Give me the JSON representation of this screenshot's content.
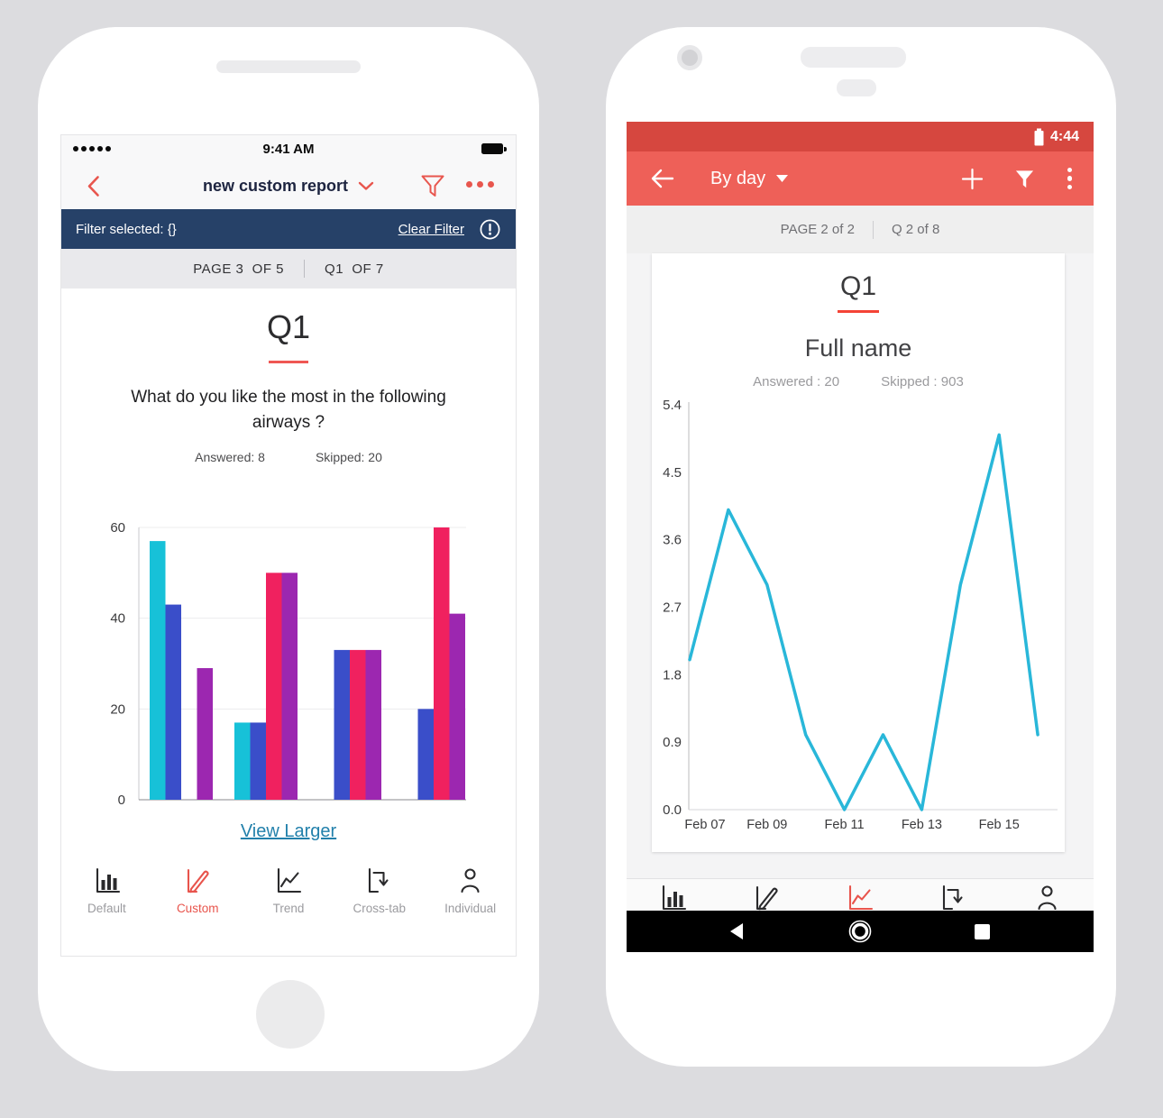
{
  "colors": {
    "left_accent_red": "#e8564e",
    "left_filter_navy": "#264168",
    "left_link_blue": "#2280ab",
    "right_statusbar_red": "#d6473f",
    "right_appbar_red": "#ee6058",
    "active_tab_red": "#e8544c",
    "bar_cyan": "#17c1d8",
    "bar_blue": "#3a4ec9",
    "bar_pink": "#f0215f",
    "bar_purple": "#9c27b0",
    "line_cyan": "#29b7d9"
  },
  "left_phone": {
    "status_bar": {
      "time": "9:41 AM"
    },
    "nav_bar": {
      "title": "new custom report"
    },
    "filter_bar": {
      "label": "Filter selected: {}",
      "clear_filter": "Clear Filter"
    },
    "page_bar": {
      "page": "PAGE 3  OF 5",
      "question": "Q1  OF 7"
    },
    "report": {
      "question_id": "Q1",
      "question_text": "What do you like the most in the following airways ?",
      "answered": "Answered: 8",
      "skipped": "Skipped: 20",
      "view_larger": "View Larger"
    },
    "tabs": [
      {
        "label": "Default",
        "active": false
      },
      {
        "label": "Custom",
        "active": true
      },
      {
        "label": "Trend",
        "active": false
      },
      {
        "label": "Cross-tab",
        "active": false
      },
      {
        "label": "Individual",
        "active": false
      }
    ]
  },
  "right_phone": {
    "status_bar": {
      "time": "4:44"
    },
    "nav_bar": {
      "title": "By day"
    },
    "page_bar": {
      "page": "PAGE 2 of 2",
      "question": "Q 2 of 8"
    },
    "report": {
      "question_id": "Q1",
      "question_text": "Full name",
      "answered": "Answered : 20",
      "skipped": "Skipped : 903"
    },
    "tabs": [
      {
        "label": "Default",
        "active": false
      },
      {
        "label": "Custom",
        "active": false
      },
      {
        "label": "Trend",
        "active": true
      },
      {
        "label": "crossTab",
        "active": false
      },
      {
        "label": "Individual",
        "active": false
      }
    ]
  },
  "chart_data": [
    {
      "type": "bar",
      "phone": "left",
      "title": "Q1 — What do you like the most in the following airways ?",
      "categories": [
        "",
        "",
        "",
        ""
      ],
      "series": [
        {
          "name": "cyan",
          "color": "#17c1d8",
          "values": [
            57,
            17,
            0,
            0
          ]
        },
        {
          "name": "blue",
          "color": "#3a4ec9",
          "values": [
            43,
            17,
            33,
            20
          ]
        },
        {
          "name": "pink",
          "color": "#f0215f",
          "values": [
            0,
            50,
            33,
            60
          ]
        },
        {
          "name": "purple",
          "color": "#9c27b0",
          "values": [
            29,
            50,
            33,
            41
          ]
        }
      ],
      "ylim": [
        0,
        60
      ],
      "yticks": [
        0,
        20,
        40,
        60
      ],
      "grid": true,
      "legend": "none",
      "xlabel": "",
      "ylabel": ""
    },
    {
      "type": "line",
      "phone": "right",
      "title": "Q1 — Full name (By day)",
      "x": [
        "Feb 07",
        "Feb 08",
        "Feb 09",
        "Feb 10",
        "Feb 11",
        "Feb 12",
        "Feb 13",
        "Feb 14",
        "Feb 15",
        "Feb 16"
      ],
      "values": [
        2.0,
        4.0,
        3.0,
        1.0,
        0.0,
        1.0,
        0.0,
        3.0,
        5.0,
        1.0
      ],
      "xticks_shown": [
        0,
        2,
        4,
        6,
        8
      ],
      "ylim": [
        0,
        5.4
      ],
      "yticks": [
        0.0,
        0.9,
        1.8,
        2.7,
        3.6,
        4.5,
        5.4
      ],
      "color": "#29b7d9",
      "grid": false,
      "legend": "none"
    }
  ]
}
